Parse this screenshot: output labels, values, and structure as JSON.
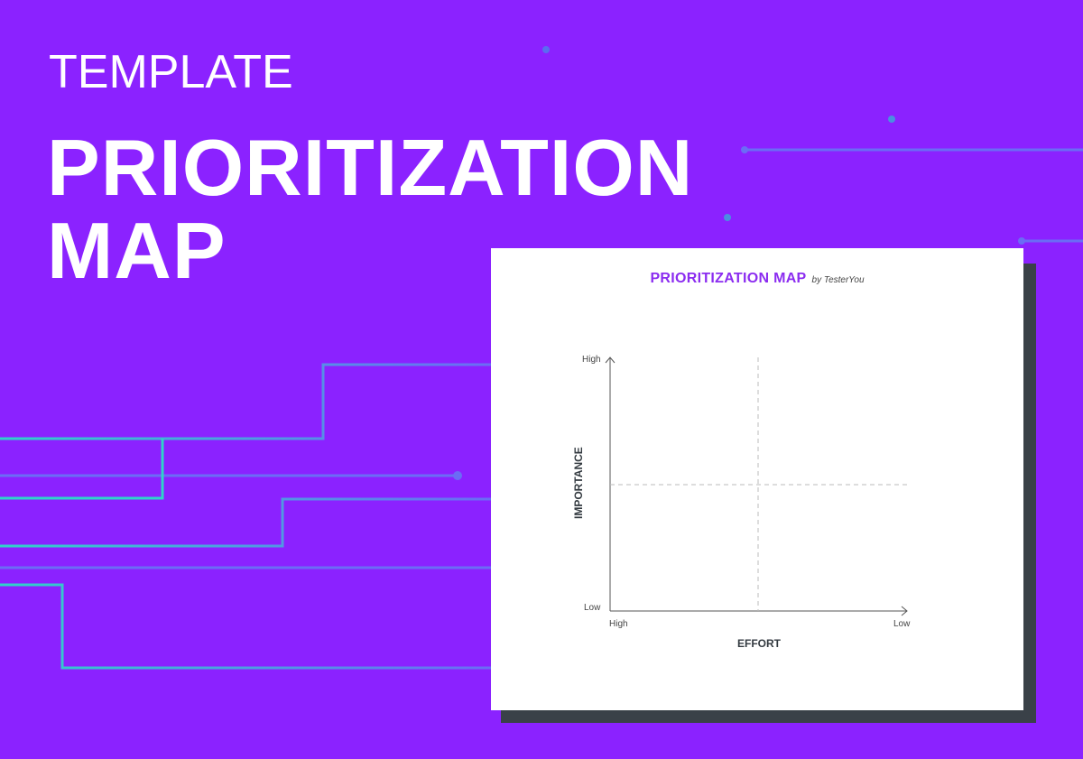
{
  "header": {
    "eyebrow": "TEMPLATE",
    "title_line1": "PRIORITIZATION",
    "title_line2": "MAP"
  },
  "card": {
    "title": "PRIORITIZATION MAP",
    "byline": "by TesterYou"
  },
  "matrix": {
    "y_axis": {
      "title": "IMPORTANCE",
      "top_label": "High",
      "bottom_label": "Low"
    },
    "x_axis": {
      "title": "EFFORT",
      "left_label": "High",
      "right_label": "Low"
    }
  },
  "colors": {
    "background": "#8b22ff",
    "line_teal": "#2fd3c9",
    "line_purple": "#6b6cf5",
    "card_title": "#8b2cf0",
    "card_shadow": "#3a4148"
  }
}
